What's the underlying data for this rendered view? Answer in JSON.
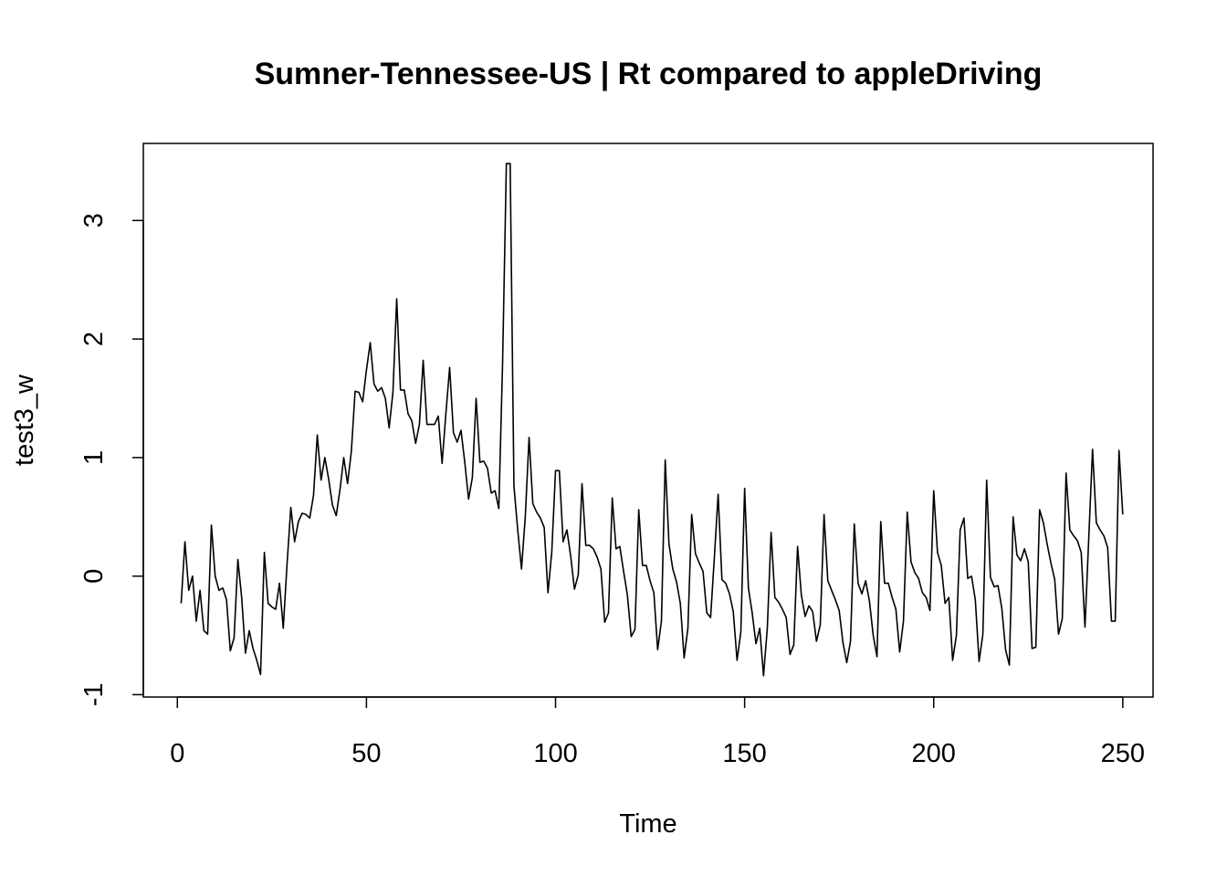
{
  "chart_data": {
    "type": "line",
    "title": "Sumner-Tennessee-US | Rt compared to appleDriving",
    "xlabel": "Time",
    "ylabel": "test3_w",
    "xlim": [
      -9,
      258
    ],
    "ylim": [
      -1.02,
      3.65
    ],
    "x_ticks": [
      0,
      50,
      100,
      150,
      200,
      250
    ],
    "y_ticks": [
      -1,
      0,
      1,
      2,
      3
    ],
    "x_tick_labels": [
      "0",
      "50",
      "100",
      "150",
      "200",
      "250"
    ],
    "y_tick_labels": [
      "-1",
      "0",
      "1",
      "2",
      "3"
    ],
    "grid": false,
    "x_start": 1,
    "series": [
      {
        "values": [
          -0.23,
          0.29,
          -0.12,
          0.0,
          -0.38,
          -0.12,
          -0.46,
          -0.49,
          0.43,
          0.0,
          -0.12,
          -0.1,
          -0.2,
          -0.63,
          -0.52,
          0.14,
          -0.18,
          -0.65,
          -0.46,
          -0.61,
          -0.71,
          -0.83,
          0.2,
          -0.23,
          -0.26,
          -0.28,
          -0.06,
          -0.44,
          0.1,
          0.58,
          0.29,
          0.46,
          0.53,
          0.52,
          0.49,
          0.68,
          1.19,
          0.81,
          1.0,
          0.82,
          0.6,
          0.51,
          0.73,
          1.0,
          0.78,
          1.05,
          1.56,
          1.55,
          1.47,
          1.74,
          1.97,
          1.62,
          1.56,
          1.59,
          1.5,
          1.25,
          1.55,
          2.34,
          1.57,
          1.57,
          1.37,
          1.31,
          1.12,
          1.28,
          1.82,
          1.28,
          1.28,
          1.28,
          1.35,
          0.95,
          1.37,
          1.76,
          1.21,
          1.13,
          1.23,
          0.96,
          0.65,
          0.83,
          1.5,
          0.96,
          0.97,
          0.91,
          0.7,
          0.72,
          0.57,
          1.8,
          3.48,
          3.48,
          0.76,
          0.39,
          0.06,
          0.5,
          1.17,
          0.61,
          0.54,
          0.49,
          0.41,
          -0.14,
          0.2,
          0.89,
          0.89,
          0.29,
          0.39,
          0.17,
          -0.11,
          0.01,
          0.78,
          0.26,
          0.26,
          0.23,
          0.16,
          0.06,
          -0.39,
          -0.31,
          0.66,
          0.23,
          0.25,
          0.04,
          -0.16,
          -0.51,
          -0.45,
          0.56,
          0.09,
          0.09,
          -0.04,
          -0.14,
          -0.62,
          -0.38,
          0.98,
          0.27,
          0.06,
          -0.05,
          -0.23,
          -0.69,
          -0.44,
          0.52,
          0.19,
          0.11,
          0.04,
          -0.31,
          -0.35,
          0.16,
          0.69,
          -0.03,
          -0.06,
          -0.15,
          -0.3,
          -0.71,
          -0.47,
          0.74,
          -0.1,
          -0.31,
          -0.57,
          -0.44,
          -0.84,
          -0.44,
          0.37,
          -0.18,
          -0.22,
          -0.28,
          -0.35,
          -0.66,
          -0.58,
          0.25,
          -0.16,
          -0.34,
          -0.25,
          -0.3,
          -0.55,
          -0.41,
          0.52,
          -0.04,
          -0.12,
          -0.2,
          -0.29,
          -0.56,
          -0.73,
          -0.55,
          0.44,
          -0.06,
          -0.15,
          -0.04,
          -0.21,
          -0.5,
          -0.68,
          0.46,
          -0.06,
          -0.06,
          -0.18,
          -0.28,
          -0.64,
          -0.38,
          0.54,
          0.12,
          0.03,
          -0.02,
          -0.14,
          -0.18,
          -0.29,
          0.72,
          0.2,
          0.09,
          -0.23,
          -0.18,
          -0.71,
          -0.5,
          0.39,
          0.49,
          -0.02,
          -0.0,
          -0.2,
          -0.72,
          -0.49,
          0.81,
          -0.01,
          -0.09,
          -0.08,
          -0.27,
          -0.62,
          -0.75,
          0.5,
          0.18,
          0.13,
          0.23,
          0.12,
          -0.61,
          -0.6,
          0.56,
          0.45,
          0.27,
          0.11,
          -0.03,
          -0.49,
          -0.36,
          0.87,
          0.39,
          0.34,
          0.3,
          0.2,
          -0.43,
          0.32,
          1.07,
          0.45,
          0.39,
          0.34,
          0.24,
          -0.38,
          -0.38,
          1.06,
          0.52
        ]
      }
    ]
  }
}
